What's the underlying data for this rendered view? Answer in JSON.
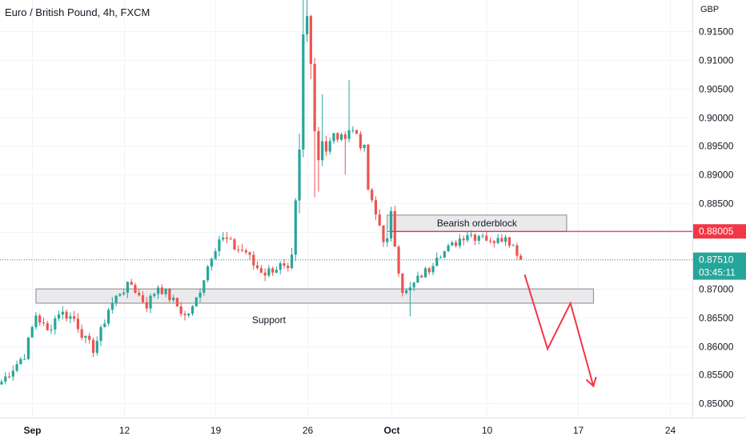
{
  "chart_title": "Euro / British Pound, 4h, FXCM",
  "currency_label": "GBP",
  "colors": {
    "up": "#26a69a",
    "down": "#ef5350",
    "grid": "#f0f3fa",
    "zone_fill": "#e6e6ea",
    "zone_stroke": "#6b6b6b",
    "level_line": "#f23645",
    "projection": "#f23645",
    "last_price_badge": "#26a69a"
  },
  "chart_data": {
    "type": "candlestick",
    "symbol": "EUR/GBP",
    "timeframe": "4h",
    "source": "FXCM",
    "ylim": [
      0.8475,
      0.9205
    ],
    "y_ticks": [
      "0.91500",
      "0.91000",
      "0.90500",
      "0.90000",
      "0.89500",
      "0.89000",
      "0.88500",
      "0.88000",
      "0.87500",
      "0.87000",
      "0.86500",
      "0.86000",
      "0.85500",
      "0.85000"
    ],
    "x_ticks": [
      {
        "label": "Sep",
        "bold": true,
        "bar": 8
      },
      {
        "label": "12",
        "bold": false,
        "bar": 32
      },
      {
        "label": "19",
        "bold": false,
        "bar": 56
      },
      {
        "label": "26",
        "bold": false,
        "bar": 80
      },
      {
        "label": "Oct",
        "bold": true,
        "bar": 102
      },
      {
        "label": "10",
        "bold": false,
        "bar": 127
      },
      {
        "label": "17",
        "bold": false,
        "bar": 151
      },
      {
        "label": "24",
        "bold": false,
        "bar": 175
      }
    ],
    "close_path": [
      [
        0,
        0.8538
      ],
      [
        6,
        0.8585
      ],
      [
        9,
        0.8655
      ],
      [
        12,
        0.8625
      ],
      [
        15,
        0.866
      ],
      [
        19,
        0.8648
      ],
      [
        22,
        0.861
      ],
      [
        24,
        0.8595
      ],
      [
        26,
        0.8625
      ],
      [
        28,
        0.8665
      ],
      [
        31,
        0.8695
      ],
      [
        34,
        0.8708
      ],
      [
        36,
        0.8688
      ],
      [
        38,
        0.8672
      ],
      [
        41,
        0.8705
      ],
      [
        44,
        0.8685
      ],
      [
        46,
        0.867
      ],
      [
        48,
        0.8652
      ],
      [
        50,
        0.8665
      ],
      [
        52,
        0.87
      ],
      [
        55,
        0.876
      ],
      [
        57,
        0.8788
      ],
      [
        59,
        0.8785
      ],
      [
        61,
        0.8772
      ],
      [
        64,
        0.8765
      ],
      [
        66,
        0.8742
      ],
      [
        69,
        0.8728
      ],
      [
        71,
        0.8735
      ],
      [
        73,
        0.874
      ],
      [
        75,
        0.8728
      ],
      [
        76,
        0.8745
      ],
      [
        77,
        0.8842
      ],
      [
        78,
        0.8935
      ],
      [
        79,
        0.914
      ],
      [
        80,
        0.9175
      ],
      [
        81,
        0.911
      ],
      [
        82,
        0.8982
      ],
      [
        83,
        0.893
      ],
      [
        84,
        0.8968
      ],
      [
        85,
        0.8942
      ],
      [
        87,
        0.8968
      ],
      [
        89,
        0.8962
      ],
      [
        91,
        0.898
      ],
      [
        93,
        0.8972
      ],
      [
        95,
        0.8935
      ],
      [
        96,
        0.8875
      ],
      [
        97,
        0.8842
      ],
      [
        99,
        0.8812
      ],
      [
        101,
        0.8778
      ],
      [
        102,
        0.8822
      ],
      [
        103,
        0.8782
      ],
      [
        105,
        0.8705
      ],
      [
        106,
        0.869
      ],
      [
        108,
        0.8708
      ],
      [
        110,
        0.8725
      ],
      [
        112,
        0.8735
      ],
      [
        114,
        0.8762
      ],
      [
        116,
        0.8765
      ],
      [
        118,
        0.8775
      ],
      [
        120,
        0.8788
      ],
      [
        122,
        0.8798
      ],
      [
        124,
        0.8792
      ],
      [
        126,
        0.8798
      ],
      [
        128,
        0.8778
      ],
      [
        130,
        0.8795
      ],
      [
        132,
        0.8788
      ],
      [
        134,
        0.8778
      ],
      [
        135,
        0.8765
      ],
      [
        136,
        0.8751
      ]
    ],
    "spike_highs": [
      [
        79,
        0.9205
      ],
      [
        80,
        0.9205
      ],
      [
        91,
        0.9065
      ],
      [
        84,
        0.904
      ]
    ],
    "spike_lows": [
      [
        82,
        0.886
      ],
      [
        83,
        0.887
      ],
      [
        107,
        0.8652
      ],
      [
        90,
        0.89
      ]
    ],
    "zones": [
      {
        "label": "Bearish orderblock",
        "from_bar": 101,
        "to_bar": 148,
        "low": 0.88,
        "high": 0.8829
      },
      {
        "label": "Support",
        "from_bar": 9,
        "to_bar": 155,
        "low": 0.8675,
        "high": 0.87
      }
    ],
    "horizontal_level": {
      "value": 0.88005,
      "from_bar": 102,
      "label": "0.88005"
    },
    "last_price": {
      "value": 0.8751,
      "label": "0.87510",
      "countdown": "03:45:11"
    },
    "projection_path": [
      [
        137,
        0.8725
      ],
      [
        143,
        0.8595
      ],
      [
        149,
        0.8675
      ],
      [
        155,
        0.853
      ]
    ]
  }
}
